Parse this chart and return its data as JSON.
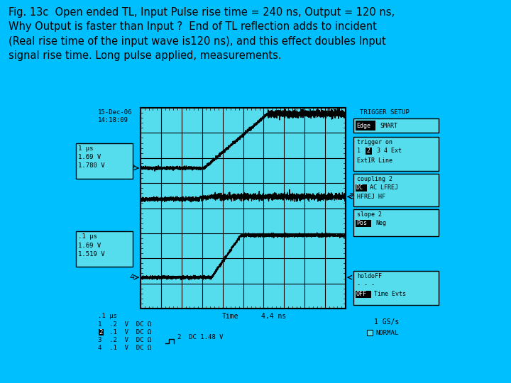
{
  "bg_color": "#00BFFF",
  "title_text": "Fig. 13c  Open ended TL, Input Pulse rise time = 240 ns, Output = 120 ns,\nWhy Output is faster than Input ?  End of TL reflection adds to incident\n(Real rise time of the input wave is120 ns), and this effect doubles Input\nsignal rise time. Long pulse applied, measurements.",
  "title_fontsize": 10.5,
  "date_text": "15-Dec-06\n14:18:09",
  "gs_text": "1 GS/s",
  "normal_text": "NORMAL",
  "time_label": "Time",
  "time_value": "4.4 ns",
  "ch1_info": "1 µs\n1.69 V\n1.780 V",
  "ch4_info": ".1 µs\n1.69 V\n1.519 V",
  "ch_list_1": "1  .2  V  DC Ω",
  "ch_list_2": "2  .1  V  DC Ω",
  "ch_list_3": "3  .2  V  DC Ω",
  "ch_list_4": "4  .1  V  DC Ω",
  "ch2_dc": "2  DC 1.48 V",
  "time_per_div": ".1 µs",
  "nx_divs": 10,
  "ny_divs": 8,
  "scope_color": "#55DDEE",
  "line_color": "#000000",
  "sx1": 198,
  "sx2": 487,
  "sy1": 152,
  "sy2": 435
}
